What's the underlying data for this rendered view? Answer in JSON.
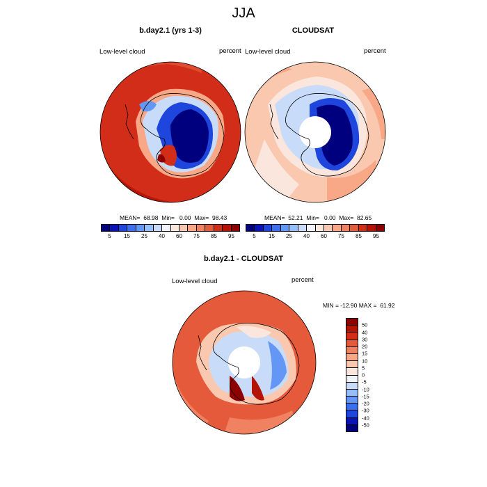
{
  "title": "JJA",
  "panels": {
    "model": {
      "title": "b.day2.1 (yrs 1-3)",
      "left_label": "Low-level cloud",
      "right_label": "percent",
      "stats": "MEAN=  68.98  Min=   0.00  Max=  98.43"
    },
    "obs": {
      "title": "CLOUDSAT",
      "left_label": "Low-level cloud",
      "right_label": "percent",
      "stats": "MEAN=  52.21  Min=   0.00  Max=  82.65"
    },
    "diff": {
      "title": "b.day2.1 - CLOUDSAT",
      "left_label": "Low-level cloud",
      "right_label": "percent",
      "stats": "MIN = -12.90 MAX =  61.92"
    }
  },
  "colorbar_main": {
    "colors": [
      "#00007f",
      "#0a14b4",
      "#1e46dc",
      "#3c6ef0",
      "#6496f5",
      "#96bef8",
      "#c8dcfa",
      "#f0f4fa",
      "#fae6dc",
      "#fac8af",
      "#f8a887",
      "#f08261",
      "#e65a3c",
      "#d22d19",
      "#b41405",
      "#8c0000"
    ],
    "tick_labels": [
      "5",
      "15",
      "25",
      "40",
      "60",
      "75",
      "85",
      "95"
    ]
  },
  "colorbar_diff": {
    "colors": [
      "#8c0000",
      "#b41405",
      "#d22d19",
      "#e65a3c",
      "#f08261",
      "#f8a887",
      "#fac8af",
      "#fae6dc",
      "#f0f4fa",
      "#c8dcfa",
      "#96bef8",
      "#6496f5",
      "#3c6ef0",
      "#1e46dc",
      "#0a14b4",
      "#00007f"
    ],
    "tick_labels": [
      "50",
      "40",
      "30",
      "20",
      "15",
      "10",
      "5",
      "0",
      "-5",
      "-10",
      "-15",
      "-20",
      "-30",
      "-40",
      "-50"
    ]
  }
}
